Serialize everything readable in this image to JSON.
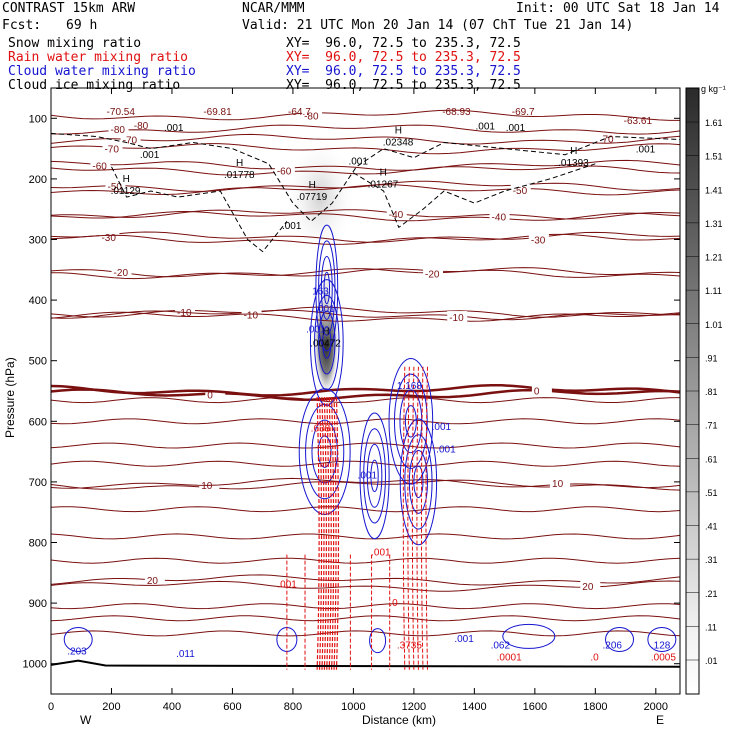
{
  "header": {
    "title_left": "CONTRAST 15km ARW",
    "title_center": "NCAR/MMM",
    "init": "Init: 00 UTC Sat 18 Jan 14",
    "fcst_label": "Fcst:",
    "fcst_value": "69 h",
    "valid": "Valid: 21 UTC Mon 20 Jan 14 (07 ChT Tue 21 Jan 14)"
  },
  "fields": [
    {
      "name": "Snow mixing ratio",
      "xy": "XY=  96.0, 72.5 to 235.3, 72.5",
      "color": "#000000"
    },
    {
      "name": "Rain water mixing ratio",
      "xy": "XY=  96.0, 72.5 to 235.3, 72.5",
      "color": "#e01010"
    },
    {
      "name": "Cloud water mixing ratio",
      "xy": "XY=  96.0, 72.5 to 235.3, 72.5",
      "color": "#1515d0"
    },
    {
      "name": "Cloud ice mixing ratio",
      "xy": "XY=  96.0, 72.5 to 235.3, 72.5",
      "color": "#000000"
    }
  ],
  "chart_data": {
    "type": "heatmap",
    "xlabel": "Distance (km)",
    "ylabel": "Pressure (hPa)",
    "xlim": [
      0,
      2080
    ],
    "ylim": [
      1050,
      50
    ],
    "x_ticks": [
      0,
      200,
      400,
      600,
      800,
      1000,
      1200,
      1400,
      1600,
      1800,
      2000
    ],
    "y_ticks": [
      100,
      200,
      300,
      400,
      500,
      600,
      700,
      800,
      900,
      1000
    ],
    "x_end_labels": {
      "left": "W",
      "right": "E"
    },
    "colorbar": {
      "unit": "g kg⁻¹",
      "labels": [
        "1.61",
        "1.51",
        "1.41",
        "1.31",
        "1.21",
        "1.11",
        "1.01",
        ".91",
        ".81",
        ".71",
        ".61",
        ".51",
        ".41",
        ".31",
        ".21",
        ".11",
        ".01"
      ]
    },
    "temperature_contours": [
      {
        "value": -80,
        "p": 95,
        "label_x": 860
      },
      {
        "value": -80,
        "p": 118,
        "label_x": 220
      },
      {
        "value": -70,
        "p": 135,
        "label_x": 260
      },
      {
        "value": -70,
        "p": 150,
        "label_x": 200
      },
      {
        "value": -60,
        "p": 178,
        "label_x": 160
      },
      {
        "value": -60,
        "p": 186,
        "label_x": 770
      },
      {
        "value": -50,
        "p": 212,
        "label_x": 210
      },
      {
        "value": -50,
        "p": 218,
        "label_x": 1550
      },
      {
        "value": -40,
        "p": 258,
        "label_x": 1140
      },
      {
        "value": -40,
        "p": 262,
        "label_x": 1480
      },
      {
        "value": -30,
        "p": 296,
        "label_x": 190
      },
      {
        "value": -30,
        "p": 300,
        "label_x": 1610
      },
      {
        "value": -20,
        "p": 354,
        "label_x": 230
      },
      {
        "value": -20,
        "p": 356,
        "label_x": 1260
      },
      {
        "value": -10,
        "p": 420,
        "label_x": 440
      },
      {
        "value": -10,
        "p": 424,
        "label_x": 660
      },
      {
        "value": -10,
        "p": 428,
        "label_x": 1340
      },
      {
        "value": 0,
        "p": 556,
        "label_x": 540
      },
      {
        "value": 0,
        "p": 549,
        "label_x": 1620
      },
      {
        "value": 10,
        "p": 705,
        "label_x": 520
      },
      {
        "value": 10,
        "p": 702,
        "label_x": 1680
      },
      {
        "value": 20,
        "p": 862,
        "label_x": 340
      },
      {
        "value": 20,
        "p": 872,
        "label_x": 1780
      }
    ],
    "isotherm_labels": [
      {
        "x": 230,
        "p": 88,
        "text": "-70.54"
      },
      {
        "x": 550,
        "p": 88,
        "text": "-69.81"
      },
      {
        "x": 830,
        "p": 88,
        "text": "-64.7"
      },
      {
        "x": 1340,
        "p": 88,
        "text": "-68.93"
      },
      {
        "x": 1570,
        "p": 88,
        "text": "-69.7"
      },
      {
        "x": 1940,
        "p": 103,
        "text": "-63.61"
      },
      {
        "x": 320,
        "p": 111,
        "text": "-80"
      },
      {
        "x": 1870,
        "p": 133,
        "text": "70"
      }
    ],
    "ice_labels": [
      {
        "x": 420,
        "p": 114,
        "text": ".001"
      },
      {
        "x": 340,
        "p": 159,
        "text": ".001"
      },
      {
        "x": 1030,
        "p": 170,
        "text": ".001"
      },
      {
        "x": 1450,
        "p": 112,
        "text": ".001"
      },
      {
        "x": 1550,
        "p": 114,
        "text": ".001"
      },
      {
        "x": 1980,
        "p": 150,
        "text": ".001"
      },
      {
        "x": 810,
        "p": 276,
        "text": ".001"
      }
    ],
    "snow_maxima": [
      {
        "x": 1150,
        "p": 138,
        "text": ".02348"
      },
      {
        "x": 625,
        "p": 192,
        "text": ".01778"
      },
      {
        "x": 1730,
        "p": 172,
        "text": ".01393"
      },
      {
        "x": 250,
        "p": 218,
        "text": ".01129"
      },
      {
        "x": 1100,
        "p": 208,
        "text": ".01267"
      },
      {
        "x": 865,
        "p": 228,
        "text": ".07719"
      },
      {
        "x": 910,
        "p": 470,
        "text": ".00472"
      }
    ],
    "cloud_water_labels": [
      {
        "x": 910,
        "p": 384,
        "text": "163"
      },
      {
        "x": 920,
        "p": 413,
        "text": ".001"
      },
      {
        "x": 890,
        "p": 447,
        "text": ".001"
      },
      {
        "x": 1190,
        "p": 540,
        "text": "1.168"
      },
      {
        "x": 1305,
        "p": 608,
        "text": ".001"
      },
      {
        "x": 1320,
        "p": 645,
        "text": ".001"
      },
      {
        "x": 1060,
        "p": 688,
        "text": ".001"
      },
      {
        "x": 100,
        "p": 978,
        "text": ".203"
      },
      {
        "x": 460,
        "p": 982,
        "text": ".011"
      },
      {
        "x": 1380,
        "p": 958,
        "text": ".001"
      },
      {
        "x": 1500,
        "p": 968,
        "text": ".062"
      },
      {
        "x": 1870,
        "p": 968,
        "text": ".206"
      },
      {
        "x": 2030,
        "p": 968,
        "text": ".128"
      }
    ],
    "rain_labels": [
      {
        "x": 905,
        "p": 610,
        "text": ".638"
      },
      {
        "x": 795,
        "p": 868,
        "text": ".001"
      },
      {
        "x": 1105,
        "p": 815,
        "text": ".001"
      },
      {
        "x": 1165,
        "p": 898,
        "text": ".0"
      },
      {
        "x": 1190,
        "p": 968,
        "text": ".3735"
      },
      {
        "x": 1520,
        "p": 988,
        "text": ".0001"
      },
      {
        "x": 1830,
        "p": 988,
        "text": ".0"
      },
      {
        "x": 2030,
        "p": 988,
        "text": ".0005"
      }
    ]
  }
}
